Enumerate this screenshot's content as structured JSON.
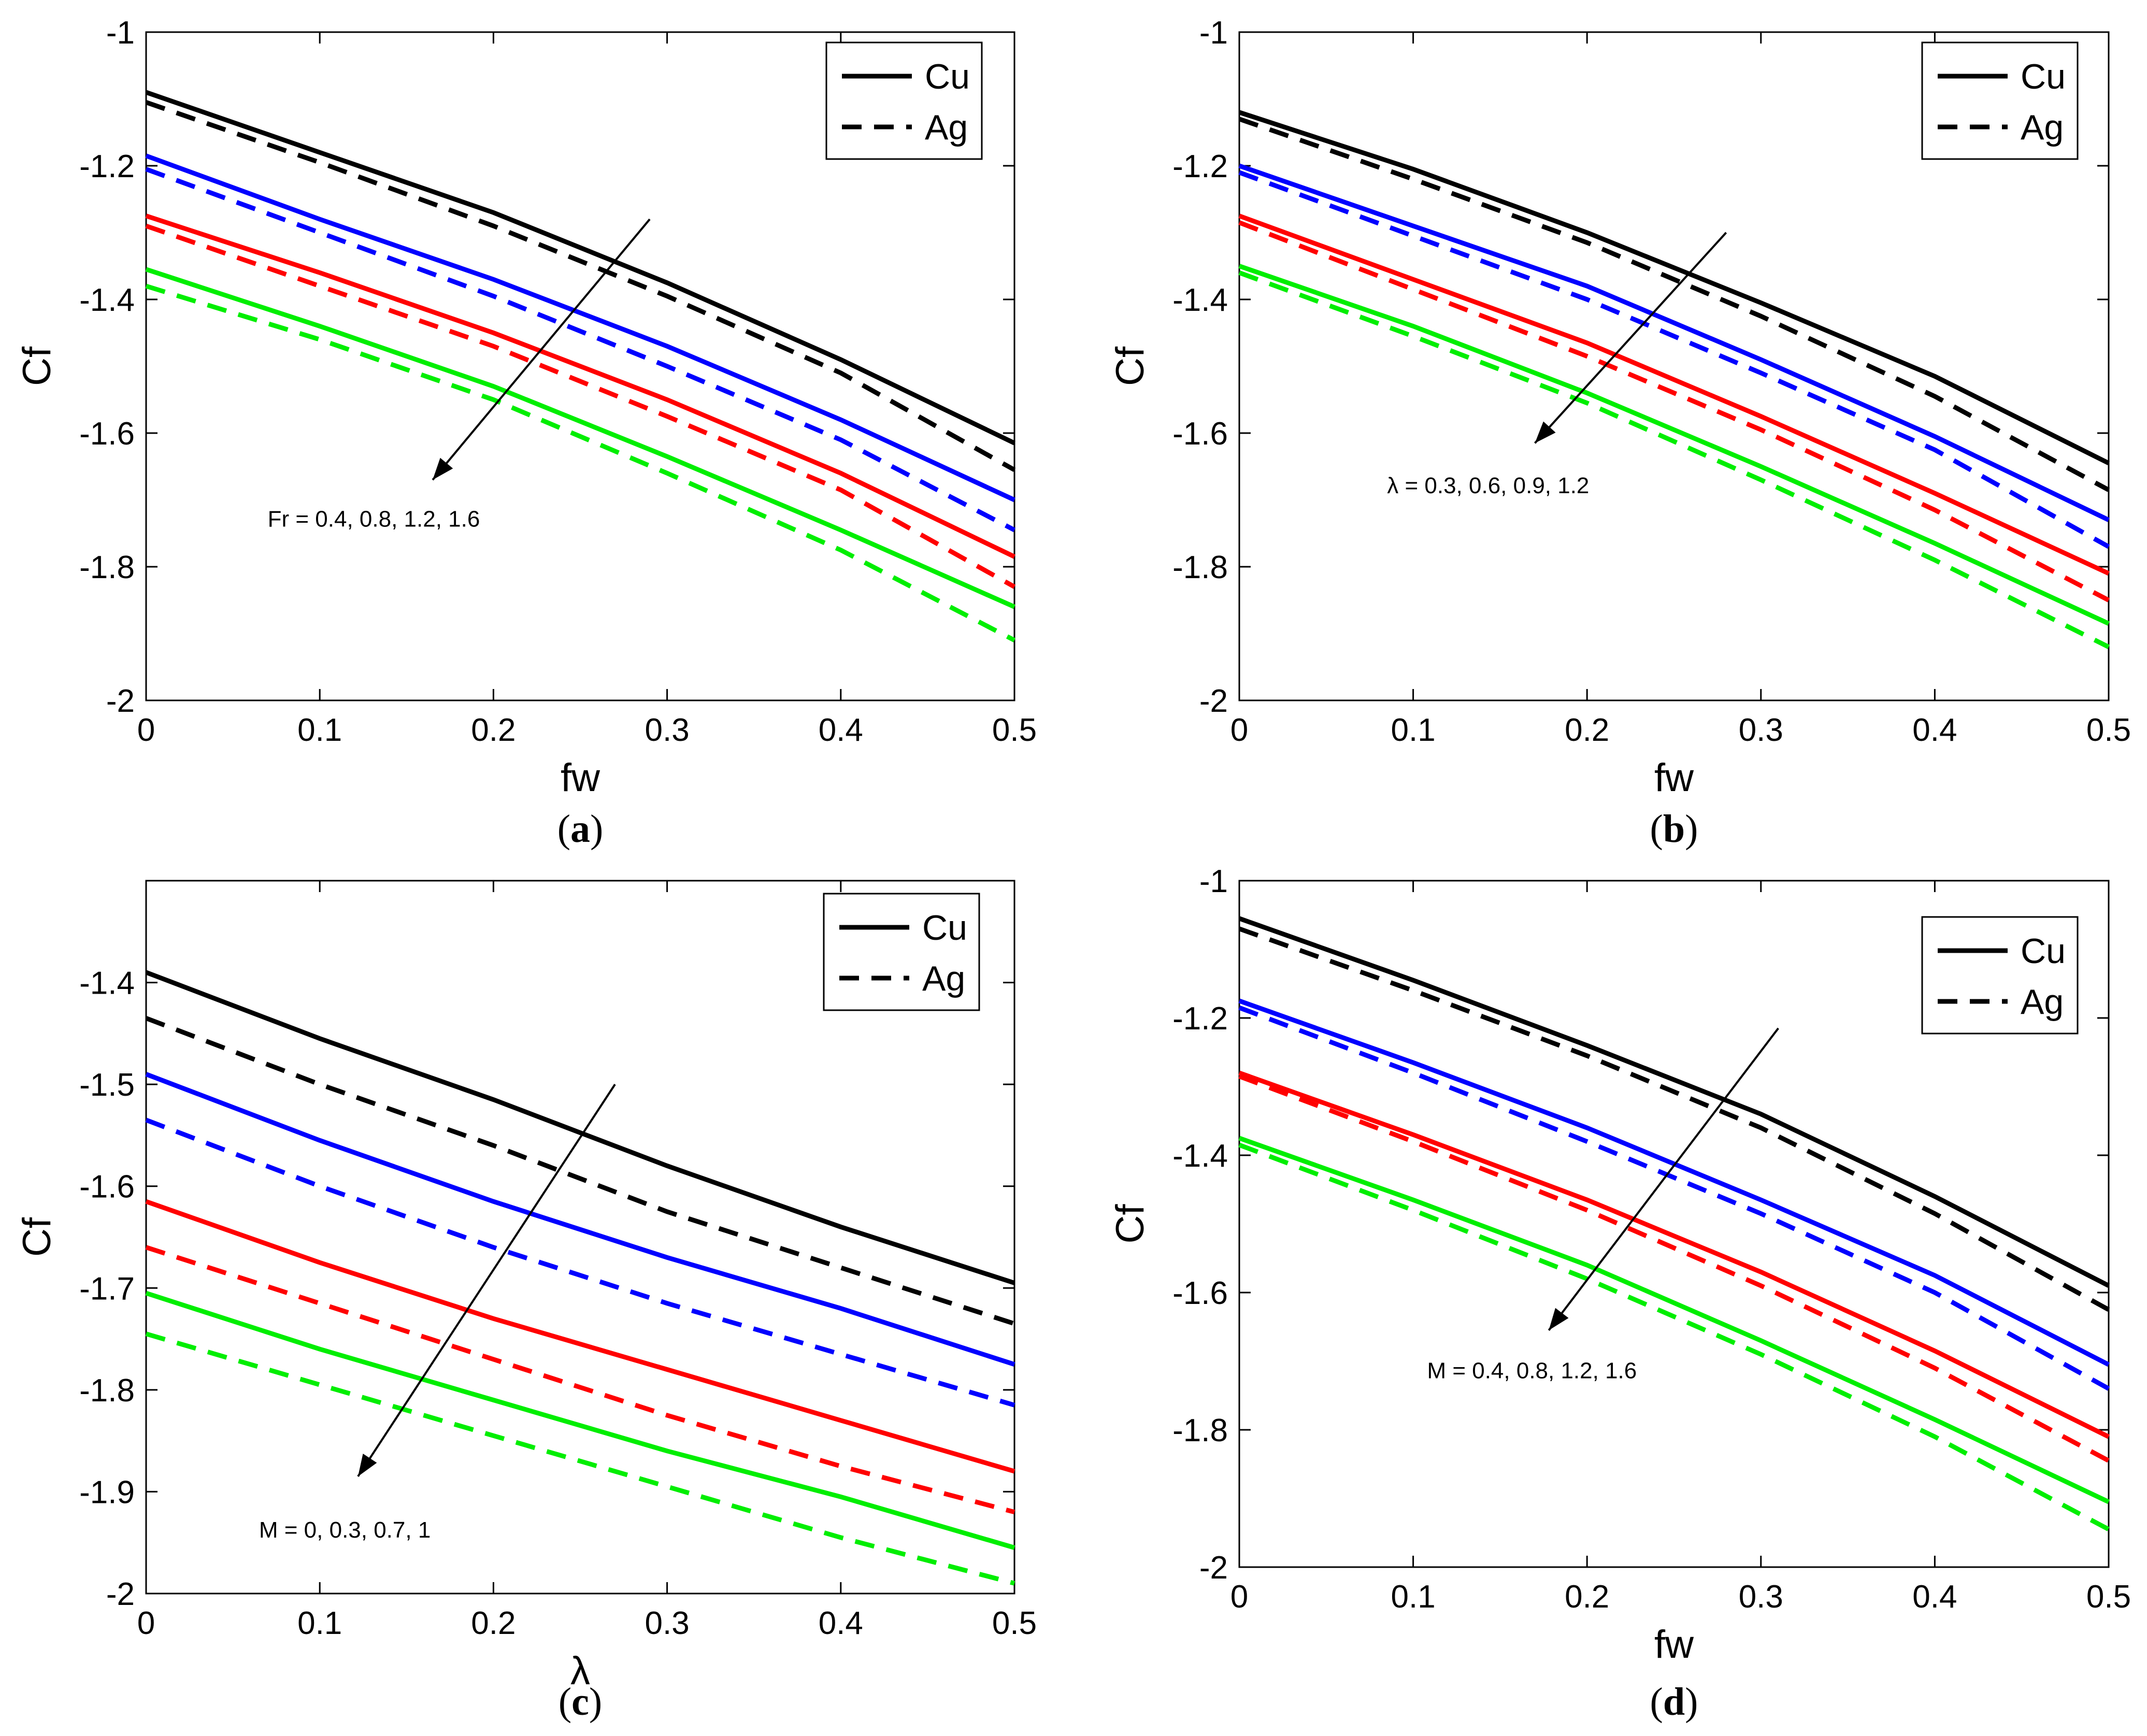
{
  "chart_data": [
    {
      "id": "a",
      "type": "line",
      "caption": "a",
      "xlabel": "fw",
      "ylabel": "Cf",
      "xlim": [
        0,
        0.5
      ],
      "ylim": [
        -2,
        -1
      ],
      "xticks": [
        "0",
        "0.1",
        "0.2",
        "0.3",
        "0.4",
        "0.5"
      ],
      "yticks": [
        "-2",
        "-1.8",
        "-1.6",
        "-1.4",
        "-1.2",
        "-1"
      ],
      "xtick_values": [
        0,
        0.1,
        0.2,
        0.3,
        0.4,
        0.5
      ],
      "ytick_values": [
        -2,
        -1.8,
        -1.6,
        -1.4,
        -1.2,
        -1
      ],
      "legend": [
        {
          "label": "Cu",
          "style": "solid"
        },
        {
          "label": "Ag",
          "style": "dashed"
        }
      ],
      "annotation": "Fr = 0.4, 0.8, 1.2, 1.6",
      "arrow": {
        "from": [
          0.29,
          -1.28
        ],
        "to": [
          0.165,
          -1.67
        ]
      },
      "annotation_anchor": [
        0.07,
        -1.74
      ],
      "x": [
        0,
        0.1,
        0.2,
        0.3,
        0.4,
        0.5
      ],
      "series": [
        {
          "name": "Cu Fr=0.4",
          "color": "#000000",
          "style": "solid",
          "values": [
            -1.09,
            -1.18,
            -1.27,
            -1.375,
            -1.49,
            -1.615
          ]
        },
        {
          "name": "Ag Fr=0.4",
          "color": "#000000",
          "style": "dashed",
          "values": [
            -1.105,
            -1.195,
            -1.29,
            -1.395,
            -1.51,
            -1.655
          ]
        },
        {
          "name": "Cu Fr=0.8",
          "color": "#0000ff",
          "style": "solid",
          "values": [
            -1.185,
            -1.28,
            -1.37,
            -1.47,
            -1.58,
            -1.7
          ]
        },
        {
          "name": "Ag Fr=0.8",
          "color": "#0000ff",
          "style": "dashed",
          "values": [
            -1.205,
            -1.3,
            -1.395,
            -1.5,
            -1.61,
            -1.745
          ]
        },
        {
          "name": "Cu Fr=1.2",
          "color": "#ff0000",
          "style": "solid",
          "values": [
            -1.275,
            -1.36,
            -1.45,
            -1.55,
            -1.66,
            -1.785
          ]
        },
        {
          "name": "Ag Fr=1.2",
          "color": "#ff0000",
          "style": "dashed",
          "values": [
            -1.29,
            -1.38,
            -1.47,
            -1.575,
            -1.685,
            -1.83
          ]
        },
        {
          "name": "Cu Fr=1.6",
          "color": "#00ee00",
          "style": "solid",
          "values": [
            -1.355,
            -1.44,
            -1.53,
            -1.635,
            -1.745,
            -1.86
          ]
        },
        {
          "name": "Ag Fr=1.6",
          "color": "#00ee00",
          "style": "dashed",
          "values": [
            -1.38,
            -1.46,
            -1.55,
            -1.66,
            -1.775,
            -1.91
          ]
        }
      ]
    },
    {
      "id": "b",
      "type": "line",
      "caption": "b",
      "xlabel": "fw",
      "ylabel": "Cf",
      "xlim": [
        0,
        0.5
      ],
      "ylim": [
        -2,
        -1
      ],
      "xticks": [
        "0",
        "0.1",
        "0.2",
        "0.3",
        "0.4",
        "0.5"
      ],
      "yticks": [
        "-2",
        "-1.8",
        "-1.6",
        "-1.4",
        "-1.2",
        "-1"
      ],
      "xtick_values": [
        0,
        0.1,
        0.2,
        0.3,
        0.4,
        0.5
      ],
      "ytick_values": [
        -2,
        -1.8,
        -1.6,
        -1.4,
        -1.2,
        -1
      ],
      "legend": [
        {
          "label": "Cu",
          "style": "solid"
        },
        {
          "label": "Ag",
          "style": "dashed"
        }
      ],
      "annotation": "λ = 0.3, 0.6, 0.9, 1.2",
      "arrow": {
        "from": [
          0.28,
          -1.3
        ],
        "to": [
          0.17,
          -1.615
        ]
      },
      "annotation_anchor": [
        0.085,
        -1.69
      ],
      "x": [
        0,
        0.1,
        0.2,
        0.3,
        0.4,
        0.5
      ],
      "series": [
        {
          "name": "Cu λ=0.3",
          "color": "#000000",
          "style": "solid",
          "values": [
            -1.12,
            -1.205,
            -1.3,
            -1.405,
            -1.515,
            -1.645
          ]
        },
        {
          "name": "Ag λ=0.3",
          "color": "#000000",
          "style": "dashed",
          "values": [
            -1.13,
            -1.22,
            -1.315,
            -1.425,
            -1.545,
            -1.685
          ]
        },
        {
          "name": "Cu λ=0.6",
          "color": "#0000ff",
          "style": "solid",
          "values": [
            -1.2,
            -1.29,
            -1.38,
            -1.49,
            -1.605,
            -1.73
          ]
        },
        {
          "name": "Ag λ=0.6",
          "color": "#0000ff",
          "style": "dashed",
          "values": [
            -1.21,
            -1.305,
            -1.4,
            -1.51,
            -1.625,
            -1.77
          ]
        },
        {
          "name": "Cu λ=0.9",
          "color": "#ff0000",
          "style": "solid",
          "values": [
            -1.275,
            -1.37,
            -1.465,
            -1.575,
            -1.69,
            -1.81
          ]
        },
        {
          "name": "Ag λ=0.9",
          "color": "#ff0000",
          "style": "dashed",
          "values": [
            -1.285,
            -1.385,
            -1.485,
            -1.595,
            -1.715,
            -1.85
          ]
        },
        {
          "name": "Cu λ=1.2",
          "color": "#00ee00",
          "style": "solid",
          "values": [
            -1.35,
            -1.44,
            -1.54,
            -1.65,
            -1.765,
            -1.885
          ]
        },
        {
          "name": "Ag λ=1.2",
          "color": "#00ee00",
          "style": "dashed",
          "values": [
            -1.36,
            -1.455,
            -1.555,
            -1.67,
            -1.79,
            -1.92
          ]
        }
      ]
    },
    {
      "id": "c",
      "type": "line",
      "caption": "c",
      "xlabel": "λ",
      "ylabel": "Cf",
      "xlim": [
        0,
        0.5
      ],
      "ylim": [
        -2,
        -1.3
      ],
      "xticks": [
        "0",
        "0.1",
        "0.2",
        "0.3",
        "0.4",
        "0.5"
      ],
      "yticks": [
        "-2",
        "-1.9",
        "-1.8",
        "-1.7",
        "-1.6",
        "-1.5",
        "-1.4"
      ],
      "xtick_values": [
        0,
        0.1,
        0.2,
        0.3,
        0.4,
        0.5
      ],
      "ytick_values": [
        -2,
        -1.9,
        -1.8,
        -1.7,
        -1.6,
        -1.5,
        -1.4
      ],
      "legend": [
        {
          "label": "Cu",
          "style": "solid"
        },
        {
          "label": "Ag",
          "style": "dashed"
        }
      ],
      "annotation": "M = 0, 0.3, 0.7, 1",
      "arrow": {
        "from": [
          0.27,
          -1.5
        ],
        "to": [
          0.122,
          -1.885
        ]
      },
      "annotation_anchor": [
        0.065,
        -1.945
      ],
      "x": [
        0,
        0.1,
        0.2,
        0.3,
        0.4,
        0.5
      ],
      "series": [
        {
          "name": "Cu M=0",
          "color": "#000000",
          "style": "solid",
          "values": [
            -1.39,
            -1.455,
            -1.515,
            -1.58,
            -1.64,
            -1.695
          ]
        },
        {
          "name": "Ag M=0",
          "color": "#000000",
          "style": "dashed",
          "values": [
            -1.435,
            -1.5,
            -1.56,
            -1.625,
            -1.68,
            -1.735
          ]
        },
        {
          "name": "Cu M=0.3",
          "color": "#0000ff",
          "style": "solid",
          "values": [
            -1.49,
            -1.555,
            -1.615,
            -1.67,
            -1.72,
            -1.775
          ]
        },
        {
          "name": "Ag M=0.3",
          "color": "#0000ff",
          "style": "dashed",
          "values": [
            -1.535,
            -1.6,
            -1.66,
            -1.715,
            -1.765,
            -1.815
          ]
        },
        {
          "name": "Cu M=0.7",
          "color": "#ff0000",
          "style": "solid",
          "values": [
            -1.615,
            -1.675,
            -1.73,
            -1.78,
            -1.83,
            -1.88
          ]
        },
        {
          "name": "Ag M=0.7",
          "color": "#ff0000",
          "style": "dashed",
          "values": [
            -1.66,
            -1.715,
            -1.77,
            -1.825,
            -1.875,
            -1.92
          ]
        },
        {
          "name": "Cu M=1",
          "color": "#00ee00",
          "style": "solid",
          "values": [
            -1.705,
            -1.76,
            -1.81,
            -1.86,
            -1.905,
            -1.955
          ]
        },
        {
          "name": "Ag M=1",
          "color": "#00ee00",
          "style": "dashed",
          "values": [
            -1.745,
            -1.795,
            -1.845,
            -1.895,
            -1.945,
            -1.99
          ]
        }
      ]
    },
    {
      "id": "d",
      "type": "line",
      "caption": "d",
      "xlabel": "fw",
      "ylabel": "Cf",
      "xlim": [
        0,
        0.5
      ],
      "ylim": [
        -2,
        -1
      ],
      "xticks": [
        "0",
        "0.1",
        "0.2",
        "0.3",
        "0.4",
        "0.5"
      ],
      "yticks": [
        "-2",
        "-1.8",
        "-1.6",
        "-1.4",
        "-1.2",
        "-1"
      ],
      "xtick_values": [
        0,
        0.1,
        0.2,
        0.3,
        0.4,
        0.5
      ],
      "ytick_values": [
        -2,
        -1.8,
        -1.6,
        -1.4,
        -1.2,
        -1
      ],
      "legend": [
        {
          "label": "Cu",
          "style": "solid"
        },
        {
          "label": "Ag",
          "style": "dashed"
        }
      ],
      "annotation": "M = 0.4, 0.8, 1.2, 1.6",
      "arrow": {
        "from": [
          0.31,
          -1.215
        ],
        "to": [
          0.178,
          -1.655
        ]
      },
      "annotation_anchor": [
        0.108,
        -1.725
      ],
      "x": [
        0,
        0.1,
        0.2,
        0.3,
        0.4,
        0.5
      ],
      "series": [
        {
          "name": "Cu M=0.4",
          "color": "#000000",
          "style": "solid",
          "values": [
            -1.055,
            -1.145,
            -1.24,
            -1.34,
            -1.46,
            -1.59
          ]
        },
        {
          "name": "Ag M=0.4",
          "color": "#000000",
          "style": "dashed",
          "values": [
            -1.07,
            -1.16,
            -1.255,
            -1.36,
            -1.485,
            -1.625
          ]
        },
        {
          "name": "Cu M=0.8",
          "color": "#0000ff",
          "style": "solid",
          "values": [
            -1.175,
            -1.265,
            -1.36,
            -1.465,
            -1.575,
            -1.705
          ]
        },
        {
          "name": "Ag M=0.8",
          "color": "#0000ff",
          "style": "dashed",
          "values": [
            -1.185,
            -1.28,
            -1.38,
            -1.485,
            -1.6,
            -1.74
          ]
        },
        {
          "name": "Cu M=1.2",
          "color": "#ff0000",
          "style": "solid",
          "values": [
            -1.28,
            -1.37,
            -1.465,
            -1.57,
            -1.685,
            -1.81
          ]
        },
        {
          "name": "Ag M=1.2",
          "color": "#ff0000",
          "style": "dashed",
          "values": [
            -1.285,
            -1.38,
            -1.48,
            -1.59,
            -1.71,
            -1.845
          ]
        },
        {
          "name": "Cu M=1.6",
          "color": "#00ee00",
          "style": "solid",
          "values": [
            -1.375,
            -1.465,
            -1.56,
            -1.67,
            -1.785,
            -1.905
          ]
        },
        {
          "name": "Ag M=1.6",
          "color": "#00ee00",
          "style": "dashed",
          "values": [
            -1.385,
            -1.48,
            -1.58,
            -1.69,
            -1.81,
            -1.945
          ]
        }
      ]
    }
  ]
}
